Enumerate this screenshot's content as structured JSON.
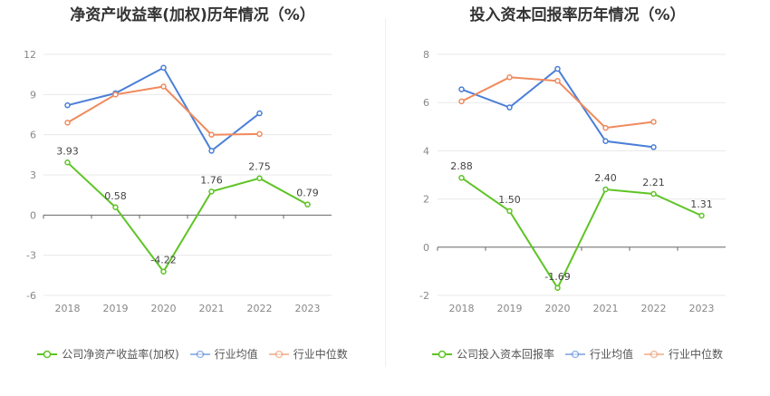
{
  "chart_data": [
    {
      "type": "line",
      "title": "净资产收益率(加权)历年情况（%）",
      "categories": [
        "2018",
        "2019",
        "2020",
        "2021",
        "2022",
        "2023"
      ],
      "ylim": [
        -6,
        12
      ],
      "yticks": [
        "12",
        "9",
        "6",
        "3",
        "0",
        "-3",
        "-6"
      ],
      "grid": true,
      "legend_position": "bottom",
      "series": [
        {
          "name": "公司净资产收益率(加权)",
          "color": "#5ec424",
          "values": [
            3.93,
            0.58,
            -4.22,
            1.76,
            2.75,
            0.79
          ],
          "labels": [
            "3.93",
            "0.58",
            "-4.22",
            "1.76",
            "2.75",
            "0.79"
          ]
        },
        {
          "name": "行业均值",
          "color": "#4a7fd8",
          "values": [
            8.2,
            9.1,
            11.0,
            4.8,
            7.6,
            null
          ]
        },
        {
          "name": "行业中位数",
          "color": "#f08a5d",
          "values": [
            6.9,
            9.0,
            9.6,
            6.0,
            6.05,
            null
          ]
        }
      ]
    },
    {
      "type": "line",
      "title": "投入资本回报率历年情况（%）",
      "categories": [
        "2018",
        "2019",
        "2020",
        "2021",
        "2022",
        "2023"
      ],
      "ylim": [
        -2,
        8
      ],
      "yticks": [
        "8",
        "6",
        "4",
        "2",
        "0",
        "-2"
      ],
      "grid": true,
      "legend_position": "bottom",
      "series": [
        {
          "name": "公司投入资本回报率",
          "color": "#5ec424",
          "values": [
            2.88,
            1.5,
            -1.69,
            2.4,
            2.21,
            1.31
          ],
          "labels": [
            "2.88",
            "1.50",
            "-1.69",
            "2.40",
            "2.21",
            "1.31"
          ]
        },
        {
          "name": "行业均值",
          "color": "#4a7fd8",
          "values": [
            6.55,
            5.8,
            7.4,
            4.4,
            4.15,
            null
          ]
        },
        {
          "name": "行业中位数",
          "color": "#f08a5d",
          "values": [
            6.05,
            7.05,
            6.9,
            4.95,
            5.2,
            null
          ]
        }
      ]
    }
  ]
}
